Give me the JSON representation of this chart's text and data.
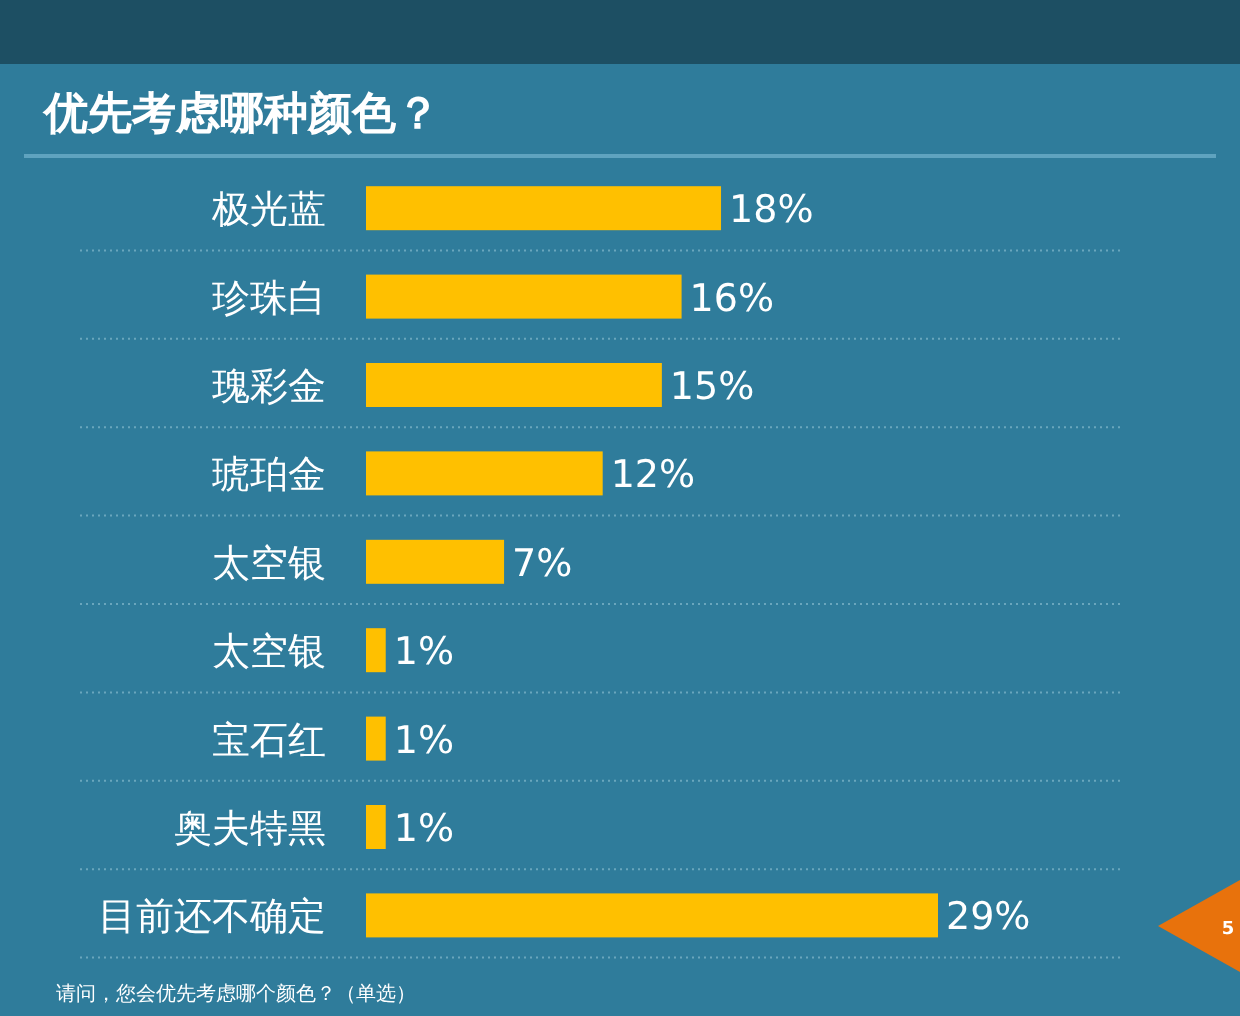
{
  "chart_data": {
    "type": "bar",
    "orientation": "horizontal",
    "title": "优先考虑哪种颜色？",
    "categories": [
      "极光蓝",
      "珍珠白",
      "瑰彩金",
      "琥珀金",
      "太空银",
      "太空银",
      "宝石红",
      "奥夫特黑",
      "目前还不确定"
    ],
    "values": [
      18,
      16,
      15,
      12,
      7,
      1,
      1,
      1,
      29
    ],
    "value_labels": [
      "18%",
      "16%",
      "15%",
      "12%",
      "7%",
      "1%",
      "1%",
      "1%",
      "29%"
    ],
    "color": "#ffc000",
    "annotations": [
      "请问，您会优先考虑哪个颜色？（单选）",
      "5"
    ]
  }
}
